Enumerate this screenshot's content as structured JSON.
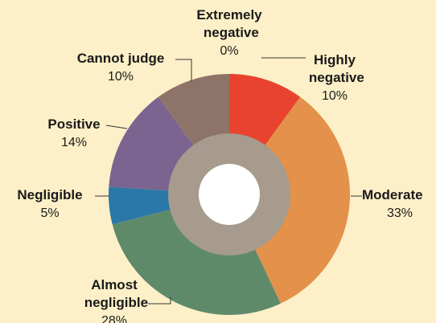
{
  "chart_data": {
    "type": "donut",
    "categories": [
      "Extremely negative",
      "Highly negative",
      "Moderate",
      "Almost negligible",
      "Negligible",
      "Positive",
      "Cannot judge"
    ],
    "values": [
      0,
      10,
      33,
      28,
      5,
      14,
      10
    ],
    "value_labels": [
      "0%",
      "10%",
      "33%",
      "28%",
      "5%",
      "14%",
      "10%"
    ],
    "colors": [
      "#b03020",
      "#e8432f",
      "#e3914b",
      "#5f8a6a",
      "#2a78a8",
      "#7b6490",
      "#8e7468"
    ]
  }
}
